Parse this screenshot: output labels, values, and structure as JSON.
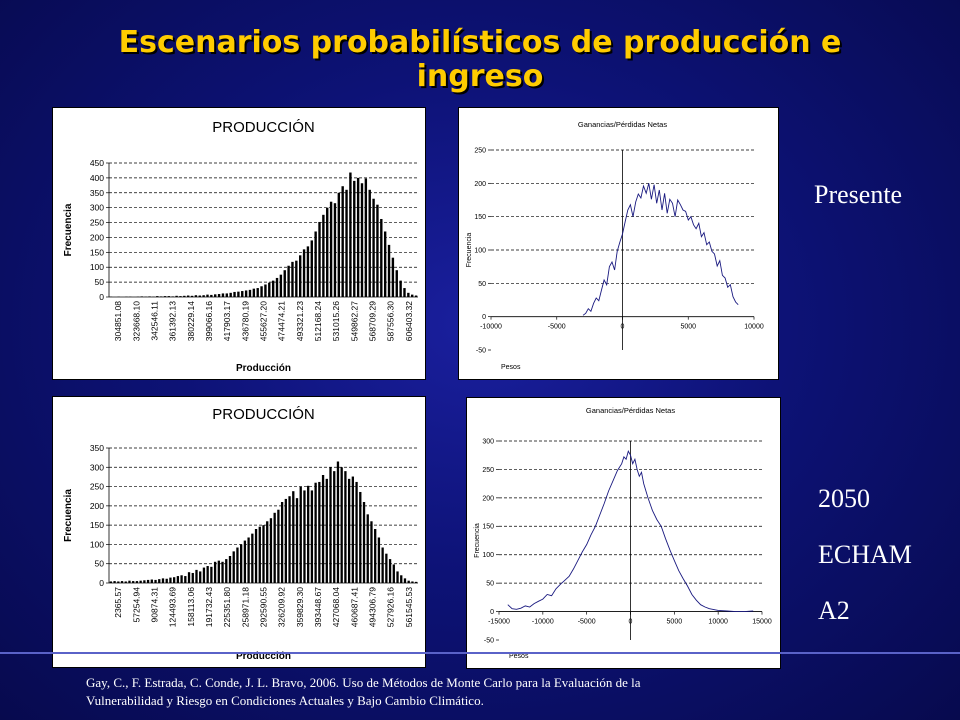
{
  "slide": {
    "title": "Escenarios probabilísticos de producción e ingreso",
    "labels": {
      "presente": "Presente",
      "scenario": [
        "2050",
        "ECHAM",
        "A2"
      ]
    },
    "citation": [
      "Gay, C., F. Estrada, C. Conde, J. L. Bravo, 2006. Uso de Métodos de Monte Carlo para la Evaluación de la",
      "Vulnerabilidad y Riesgo en Condiciones Actuales y Bajo Cambio Climático."
    ]
  },
  "chart_data": [
    {
      "id": "prod-presente",
      "type": "bar",
      "title": "PRODUCCIÓN",
      "xlabel": "Producción",
      "ylabel": "Frecuencia",
      "ylim": [
        0,
        450
      ],
      "yticks": [
        0,
        50,
        100,
        150,
        200,
        250,
        300,
        350,
        400,
        450
      ],
      "grid": true,
      "tick_labels": [
        "304851.08",
        "323668.10",
        "342546.11",
        "361392.13",
        "380229.14",
        "399066.16",
        "417903.17",
        "436780.19",
        "455627.20",
        "474474.21",
        "493321.23",
        "512168.24",
        "531015.26",
        "549862.27",
        "568709.29",
        "587556.30",
        "606403.32"
      ],
      "values": [
        1,
        0,
        1,
        0,
        1,
        1,
        0,
        1,
        2,
        1,
        2,
        1,
        3,
        2,
        3,
        3,
        2,
        4,
        3,
        4,
        5,
        4,
        6,
        5,
        6,
        8,
        7,
        9,
        10,
        12,
        12,
        14,
        17,
        18,
        20,
        22,
        24,
        28,
        30,
        36,
        42,
        48,
        55,
        64,
        75,
        90,
        105,
        118,
        122,
        140,
        160,
        170,
        190,
        220,
        252,
        276,
        300,
        320,
        315,
        350,
        372,
        360,
        418,
        390,
        400,
        382,
        398,
        360,
        330,
        310,
        262,
        220,
        175,
        132,
        90,
        55,
        30,
        14,
        8,
        5
      ]
    },
    {
      "id": "gan-presente",
      "type": "line",
      "title": "Ganancias/Pérdidas Netas",
      "xlabel": "Pesos",
      "ylabel": "Frecuencia",
      "xlim": [
        -10000,
        10000
      ],
      "ylim": [
        -50,
        250
      ],
      "xticks": [
        -10000,
        -5000,
        0,
        5000,
        10000
      ],
      "yticks": [
        -50,
        0,
        50,
        100,
        150,
        200,
        250
      ],
      "grid": true,
      "x": [
        -3000,
        -2800,
        -2600,
        -2400,
        -2200,
        -2000,
        -1800,
        -1600,
        -1400,
        -1200,
        -1000,
        -800,
        -600,
        -400,
        -200,
        0,
        200,
        400,
        600,
        800,
        1000,
        1200,
        1400,
        1600,
        1800,
        2000,
        2200,
        2400,
        2600,
        2800,
        3000,
        3200,
        3400,
        3600,
        3800,
        4000,
        4200,
        4400,
        4600,
        4800,
        5000,
        5200,
        5400,
        5600,
        5800,
        6000,
        6200,
        6400,
        6600,
        6800,
        7000,
        7200,
        7400,
        7600,
        7800,
        8000,
        8200,
        8400,
        8600,
        8800
      ],
      "y": [
        2,
        5,
        12,
        8,
        20,
        28,
        24,
        40,
        55,
        48,
        75,
        82,
        70,
        98,
        112,
        124,
        142,
        160,
        168,
        150,
        172,
        184,
        178,
        196,
        185,
        200,
        176,
        198,
        170,
        190,
        160,
        185,
        155,
        176,
        170,
        150,
        175,
        168,
        160,
        158,
        145,
        150,
        138,
        132,
        140,
        120,
        126,
        108,
        112,
        98,
        94,
        76,
        84,
        62,
        58,
        44,
        48,
        30,
        22,
        18
      ]
    },
    {
      "id": "prod-2050",
      "type": "bar",
      "title": "PRODUCCIÓN",
      "xlabel": "Producción",
      "ylabel": "Frecuencia",
      "ylim": [
        0,
        350
      ],
      "yticks": [
        0,
        50,
        100,
        150,
        200,
        250,
        300,
        350
      ],
      "grid": true,
      "tick_labels": [
        "2365.57",
        "57254.94",
        "90874.31",
        "124493.69",
        "158113.06",
        "191732.43",
        "225351.80",
        "258971.18",
        "292590.55",
        "326209.92",
        "359829.30",
        "393448.67",
        "427068.04",
        "460687.41",
        "494306.79",
        "527926.16",
        "561545.53"
      ],
      "values": [
        4,
        5,
        4,
        5,
        4,
        6,
        5,
        5,
        6,
        7,
        8,
        9,
        8,
        10,
        12,
        11,
        14,
        15,
        18,
        20,
        18,
        28,
        26,
        34,
        30,
        40,
        44,
        42,
        55,
        58,
        55,
        62,
        70,
        82,
        92,
        100,
        110,
        118,
        128,
        140,
        146,
        150,
        160,
        168,
        182,
        190,
        210,
        218,
        225,
        238,
        220,
        250,
        240,
        252,
        240,
        260,
        262,
        280,
        270,
        300,
        290,
        315,
        300,
        290,
        270,
        276,
        262,
        236,
        210,
        178,
        160,
        140,
        118,
        92,
        76,
        62,
        48,
        30,
        20,
        12,
        6,
        4,
        3
      ]
    },
    {
      "id": "gan-2050",
      "type": "line",
      "title": "Ganancias/Pérdidas Netas",
      "xlabel": "Pesos",
      "ylabel": "Frecuencia",
      "xlim": [
        -15000,
        15000
      ],
      "ylim": [
        -50,
        300
      ],
      "xticks": [
        -15000,
        -10000,
        -5000,
        0,
        5000,
        10000,
        15000
      ],
      "yticks": [
        -50,
        0,
        50,
        100,
        150,
        200,
        250,
        300
      ],
      "grid": true,
      "x": [
        -14000,
        -13500,
        -13000,
        -12500,
        -12000,
        -11500,
        -11000,
        -10500,
        -10000,
        -9500,
        -9000,
        -8500,
        -8000,
        -7500,
        -7000,
        -6500,
        -6000,
        -5500,
        -5000,
        -4500,
        -4000,
        -3500,
        -3000,
        -2500,
        -2000,
        -1500,
        -1000,
        -750,
        -500,
        -250,
        0,
        250,
        500,
        750,
        1000,
        1250,
        1500,
        2000,
        2500,
        3000,
        3500,
        4000,
        4500,
        5000,
        5500,
        6000,
        6500,
        7000,
        7500,
        8000,
        8500,
        9000,
        10000,
        11000,
        12000,
        13000,
        14000
      ],
      "y": [
        12,
        5,
        4,
        6,
        10,
        8,
        14,
        18,
        22,
        30,
        28,
        40,
        48,
        55,
        62,
        75,
        90,
        105,
        118,
        135,
        150,
        170,
        190,
        212,
        230,
        248,
        260,
        272,
        268,
        282,
        275,
        260,
        268,
        250,
        238,
        245,
        225,
        200,
        178,
        162,
        150,
        128,
        108,
        90,
        72,
        58,
        45,
        30,
        20,
        12,
        8,
        5,
        2,
        1,
        0,
        0,
        1
      ]
    }
  ]
}
